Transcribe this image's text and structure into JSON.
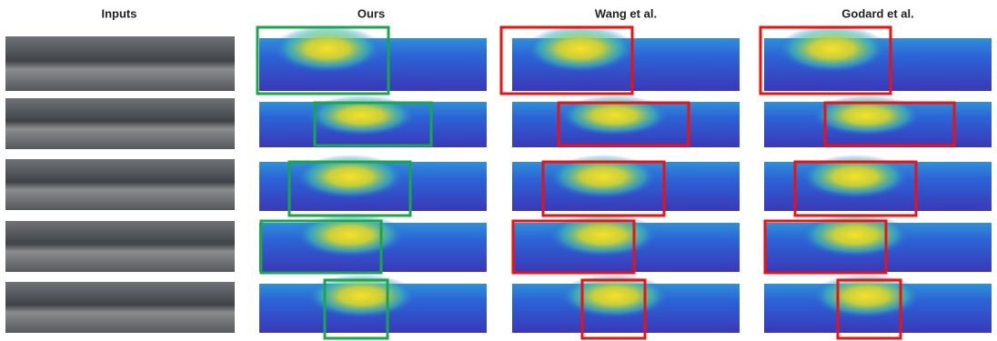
{
  "columns": [
    {
      "title": "Inputs"
    },
    {
      "title": "Ours"
    },
    {
      "title": "Wang et al."
    },
    {
      "title": "Godard et al."
    }
  ]
}
